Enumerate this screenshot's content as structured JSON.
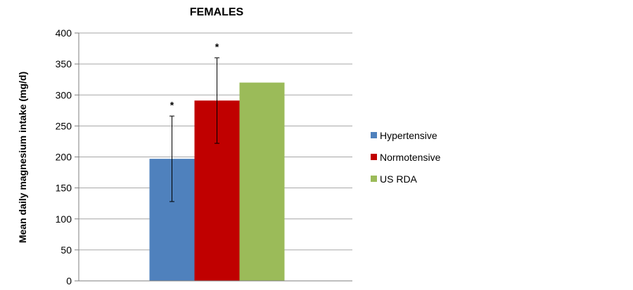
{
  "chart_data": {
    "type": "bar",
    "title": "FEMALES",
    "xlabel": "",
    "ylabel": "Mean daily magnesium intake (mg/d)",
    "ylim": [
      0,
      400
    ],
    "yticks": [
      "0",
      "50",
      "100",
      "150",
      "200",
      "250",
      "300",
      "350",
      "400"
    ],
    "grid": true,
    "legend_position": "right",
    "series": [
      {
        "name": "Hypertensive",
        "value": 197,
        "error_low": 128,
        "error_high": 266,
        "annotation": "*",
        "color": "#4f81bd"
      },
      {
        "name": "Normotensive",
        "value": 291,
        "error_low": 222,
        "error_high": 360,
        "annotation": "*",
        "color": "#c00000"
      },
      {
        "name": "US RDA",
        "value": 320,
        "color": "#9bbb59"
      }
    ]
  }
}
